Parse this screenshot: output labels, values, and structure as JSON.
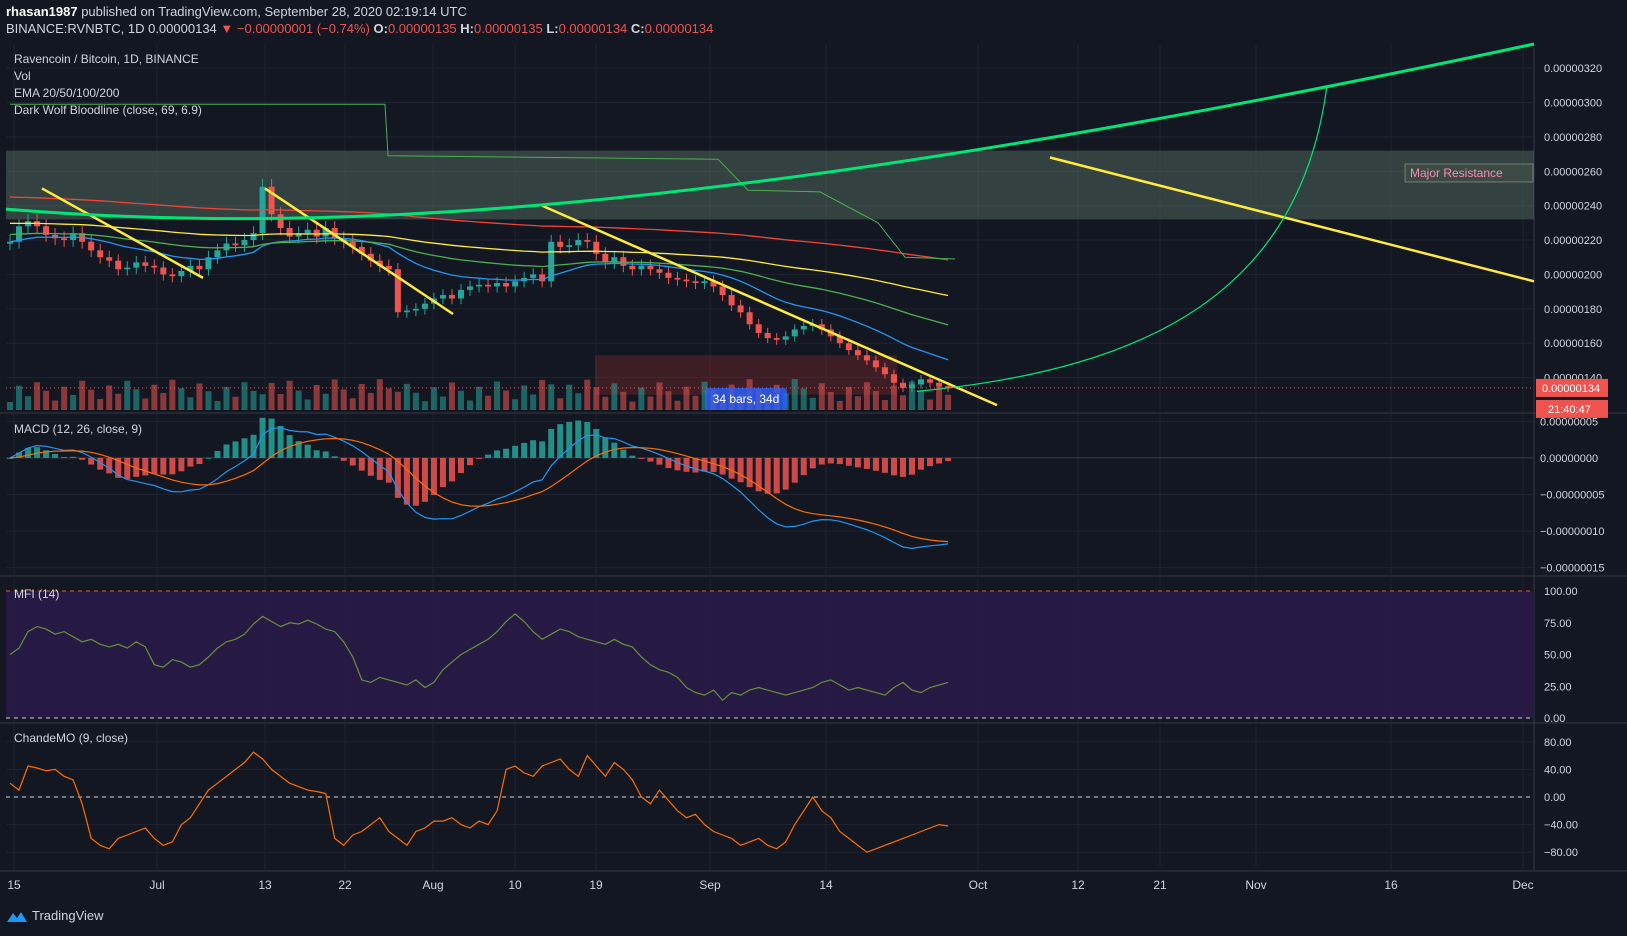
{
  "header": {
    "author": "rhasan1987",
    "published_text": "published on TradingView.com, September 28, 2020 02:19:14 UTC",
    "symbol": "BINANCE:RVNBTC, 1D",
    "last": "0.00000134",
    "change": "▼ −0.00000001 (−0.74%)",
    "o_label": "O:",
    "o": "0.00000135",
    "h_label": "H:",
    "h": "0.00000135",
    "l_label": "L:",
    "l": "0.00000134",
    "c_label": "C:",
    "c": "0.00000134"
  },
  "main_legend": {
    "title": "Ravencoin / Bitcoin, 1D, BINANCE",
    "vol": "Vol",
    "ema": "EMA 20/50/100/200",
    "bloodline": "Dark Wolf Bloodline (close, 69, 6.9)"
  },
  "annotations": {
    "major_resistance": "Major Resistance",
    "bars_range": "34 bars, 34d"
  },
  "price_badges": {
    "last_price": "0.00000134",
    "countdown": "21:40:47"
  },
  "indicators": {
    "macd": "MACD (12, 26, close, 9)",
    "mfi": "MFI (14)",
    "chande": "ChandeMO (9, close)"
  },
  "footer": {
    "brand": "TradingView"
  },
  "colors": {
    "background": "#131722",
    "up": "#26a69a",
    "down": "#ef5350",
    "trendline": "#ffeb3b",
    "curve": "#00e676",
    "ema20": "#2196f3",
    "ema50": "#4caf50",
    "ema100": "#ffeb3b",
    "ema200": "#f44336",
    "resistance_zone": "#5b7566",
    "macd_line": "#2196f3",
    "signal_line": "#ff6d00",
    "mfi_band": "#2a1b4a",
    "chande_line": "#ff6d00"
  },
  "chart_data": [
    {
      "type": "candlestick",
      "title": "Ravencoin / Bitcoin, 1D, BINANCE",
      "x_ticks": [
        "15",
        "Jul",
        "13",
        "22",
        "Aug",
        "10",
        "19",
        "Sep",
        "14",
        "Oct",
        "12",
        "21",
        "Nov",
        "16",
        "Dec"
      ],
      "y_ticks": [
        "0.00000320",
        "0.00000300",
        "0.00000280",
        "0.00000260",
        "0.00000240",
        "0.00000220",
        "0.00000200",
        "0.00000180",
        "0.00000160",
        "0.00000140"
      ],
      "ylim": [
        1.2e-06,
        3.34e-06
      ],
      "resistance_zone": [
        2.32e-06,
        2.72e-06
      ],
      "close_prices": [
        2.19e-06,
        2.28e-06,
        2.31e-06,
        2.28e-06,
        2.23e-06,
        2.21e-06,
        2.2e-06,
        2.24e-06,
        2.19e-06,
        2.14e-06,
        2.1e-06,
        2.08e-06,
        2.03e-06,
        2.04e-06,
        2.07e-06,
        2.05e-06,
        2.04e-06,
        2e-06,
        1.99e-06,
        2.02e-06,
        2.05e-06,
        2.03e-06,
        2.1e-06,
        2.14e-06,
        2.18e-06,
        2.17e-06,
        2.2e-06,
        2.24e-06,
        2.51e-06,
        2.35e-06,
        2.27e-06,
        2.22e-06,
        2.24e-06,
        2.26e-06,
        2.22e-06,
        2.27e-06,
        2.21e-06,
        2.19e-06,
        2.16e-06,
        2.12e-06,
        2.08e-06,
        2.05e-06,
        2.03e-06,
        1.78e-06,
        1.79e-06,
        1.8e-06,
        1.83e-06,
        1.86e-06,
        1.88e-06,
        1.86e-06,
        1.91e-06,
        1.93e-06,
        1.94e-06,
        1.93e-06,
        1.95e-06,
        1.93e-06,
        1.96e-06,
        1.98e-06,
        2e-06,
        1.96e-06,
        2.19e-06,
        2.16e-06,
        2.17e-06,
        2.2e-06,
        2.19e-06,
        2.12e-06,
        2.07e-06,
        2.1e-06,
        2.05e-06,
        2.03e-06,
        2.05e-06,
        2.03e-06,
        2.01e-06,
        1.98e-06,
        1.97e-06,
        1.96e-06,
        1.95e-06,
        1.96e-06,
        1.93e-06,
        1.88e-06,
        1.82e-06,
        1.78e-06,
        1.71e-06,
        1.66e-06,
        1.63e-06,
        1.62e-06,
        1.64e-06,
        1.68e-06,
        1.7e-06,
        1.71e-06,
        1.68e-06,
        1.64e-06,
        1.6e-06,
        1.56e-06,
        1.53e-06,
        1.5e-06,
        1.46e-06,
        1.42e-06,
        1.37e-06,
        1.34e-06,
        1.36e-06,
        1.39e-06,
        1.37e-06,
        1.35e-06,
        1.34e-06
      ]
    },
    {
      "type": "bar",
      "title": "MACD (12, 26, close, 9)",
      "y_ticks": [
        "0.00000005",
        "0.00000000",
        "−0.00000005",
        "−0.00000010",
        "−0.00000015"
      ],
      "ylim": [
        -1.6e-07,
        6e-08
      ]
    },
    {
      "type": "line",
      "title": "MFI (14)",
      "y_ticks": [
        "100.00",
        "75.00",
        "50.00",
        "25.00",
        "0.00"
      ],
      "ylim": [
        0,
        100
      ],
      "values": [
        50,
        55,
        68,
        72,
        70,
        66,
        68,
        64,
        60,
        62,
        58,
        56,
        58,
        55,
        60,
        56,
        42,
        40,
        46,
        44,
        40,
        42,
        48,
        55,
        60,
        62,
        66,
        74,
        80,
        76,
        72,
        75,
        74,
        77,
        74,
        70,
        68,
        60,
        48,
        30,
        28,
        32,
        30,
        28,
        26,
        30,
        24,
        28,
        38,
        44,
        50,
        54,
        58,
        62,
        68,
        76,
        82,
        76,
        68,
        62,
        66,
        70,
        68,
        64,
        62,
        60,
        58,
        62,
        58,
        56,
        48,
        42,
        38,
        36,
        32,
        24,
        20,
        18,
        22,
        14,
        20,
        18,
        22,
        24,
        22,
        20,
        18,
        20,
        22,
        24,
        28,
        30,
        26,
        22,
        24,
        22,
        20,
        18,
        24,
        28,
        22,
        20,
        24,
        26,
        28
      ]
    },
    {
      "type": "line",
      "title": "ChandeMO (9, close)",
      "y_ticks": [
        "80.00",
        "40.00",
        "0.00",
        "−40.00",
        "−80.00"
      ],
      "ylim": [
        -100,
        100
      ],
      "values": [
        20,
        10,
        45,
        42,
        38,
        40,
        30,
        25,
        -10,
        -60,
        -70,
        -75,
        -60,
        -55,
        -50,
        -45,
        -60,
        -70,
        -65,
        -40,
        -30,
        -10,
        10,
        20,
        30,
        40,
        50,
        65,
        55,
        40,
        30,
        20,
        15,
        10,
        8,
        5,
        -60,
        -70,
        -55,
        -50,
        -40,
        -30,
        -50,
        -60,
        -70,
        -50,
        -45,
        -35,
        -35,
        -30,
        -40,
        -45,
        -35,
        -40,
        -20,
        40,
        45,
        35,
        30,
        45,
        50,
        55,
        40,
        30,
        60,
        45,
        30,
        50,
        40,
        25,
        0,
        -10,
        10,
        -5,
        -20,
        -30,
        -25,
        -40,
        -50,
        -55,
        -60,
        -70,
        -65,
        -60,
        -70,
        -75,
        -65,
        -40,
        -20,
        0,
        -20,
        -30,
        -50,
        -60,
        -70,
        -80,
        -75,
        -70,
        -65,
        -60,
        -55,
        -50,
        -45,
        -40,
        -42
      ]
    }
  ]
}
